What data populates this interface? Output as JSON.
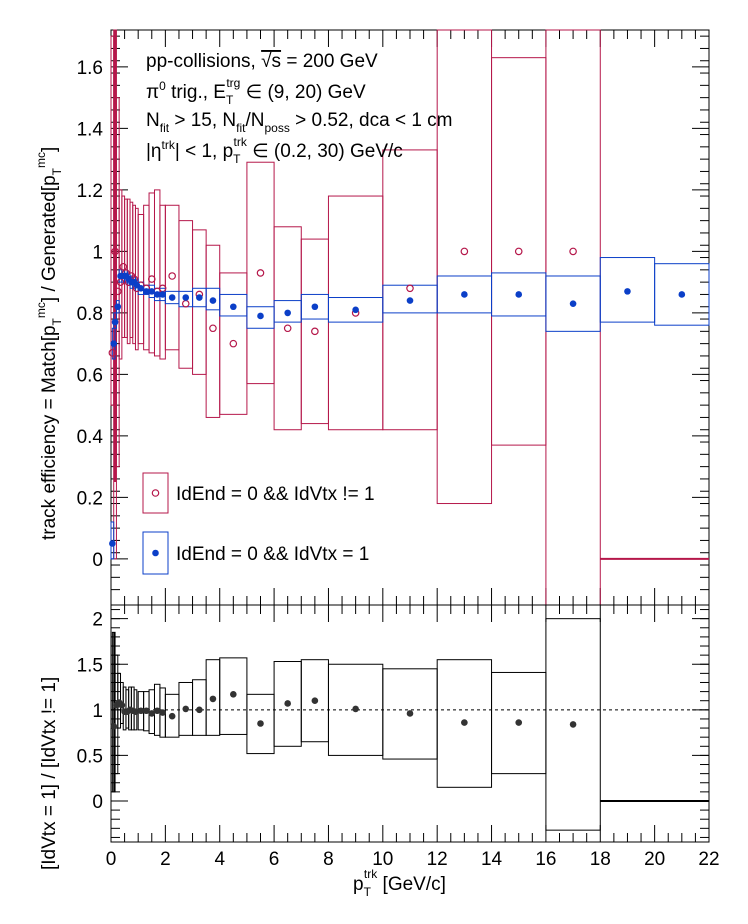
{
  "chart_data": [
    {
      "type": "scatter",
      "panel": "top",
      "ylabel_main": "track efficiency = Match[p",
      "ylabel_sub1": "T",
      "ylabel_sup1": "mc",
      "ylabel_mid": "] / Generated[p",
      "ylabel_sub2": "T",
      "ylabel_sup2": "mc",
      "ylabel_end": "]",
      "xlim": [
        0,
        22
      ],
      "ylim": [
        -0.15,
        1.72
      ],
      "yticks": [
        0,
        0.2,
        0.4,
        0.6,
        0.8,
        1,
        1.2,
        1.4,
        1.6
      ],
      "ytick_labels": [
        "0",
        "0.2",
        "0.4",
        "0.6",
        "0.8",
        "1",
        "1.2",
        "1.4",
        "1.6"
      ],
      "annotations": {
        "line1_a": "pp-collisions, ",
        "line1_sqrt": "√s",
        "line1_b": " = 200 GeV",
        "line2_a": "π",
        "line2_sup0": "0",
        "line2_b": " trig., E",
        "line2_sub": "T",
        "line2_sup": "trg",
        "line2_c": " ∈ (9, 20) GeV",
        "line3_a": "N",
        "line3_sub1": "fit",
        "line3_b": " > 15, N",
        "line3_sub2": "fit",
        "line3_c": "/N",
        "line3_sub3": "poss",
        "line3_d": " > 0.52, dca < 1 cm",
        "line4_a": "|η",
        "line4_sup1": "trk",
        "line4_b": "| < 1, p",
        "line4_sub": "T",
        "line4_sup2": "trk",
        "line4_c": " ∈ (0.2, 30) GeV/c"
      },
      "legend": [
        {
          "label": "IdEnd = 0 && IdVtx != 1",
          "color": "#b5174a",
          "marker": "open-circle"
        },
        {
          "label": "IdEnd = 0 && IdVtx = 1",
          "color": "#0b3fc8",
          "marker": "filled-circle"
        }
      ],
      "series": [
        {
          "name": "IdEnd = 0 && IdVtx != 1",
          "color": "#b5174a",
          "marker": "open",
          "points": [
            {
              "x": 0.05,
              "y": 0.67,
              "xlo": 0.0,
              "xhi": 0.1,
              "elo": 0.5,
              "ehi": 1.7
            },
            {
              "x": 0.15,
              "y": 1.0,
              "xlo": 0.1,
              "xhi": 0.2,
              "elo": 0.0,
              "ehi": 1.72
            },
            {
              "x": 0.25,
              "y": 0.87,
              "xlo": 0.2,
              "xhi": 0.3,
              "elo": 0.3,
              "ehi": 1.5
            },
            {
              "x": 0.35,
              "y": 0.9,
              "xlo": 0.3,
              "xhi": 0.4,
              "elo": 0.65,
              "ehi": 1.2
            },
            {
              "x": 0.45,
              "y": 0.95,
              "xlo": 0.4,
              "xhi": 0.5,
              "elo": 0.72,
              "ehi": 1.18
            },
            {
              "x": 0.55,
              "y": 0.93,
              "xlo": 0.5,
              "xhi": 0.6,
              "elo": 0.72,
              "ehi": 1.17
            },
            {
              "x": 0.65,
              "y": 0.9,
              "xlo": 0.6,
              "xhi": 0.7,
              "elo": 0.7,
              "ehi": 1.17
            },
            {
              "x": 0.75,
              "y": 0.92,
              "xlo": 0.7,
              "xhi": 0.8,
              "elo": 0.72,
              "ehi": 1.16
            },
            {
              "x": 0.85,
              "y": 0.91,
              "xlo": 0.8,
              "xhi": 0.9,
              "elo": 0.7,
              "ehi": 1.15
            },
            {
              "x": 0.95,
              "y": 0.88,
              "xlo": 0.9,
              "xhi": 1.0,
              "elo": 0.68,
              "ehi": 1.14
            },
            {
              "x": 1.1,
              "y": 0.89,
              "xlo": 1.0,
              "xhi": 1.2,
              "elo": 0.7,
              "ehi": 1.12
            },
            {
              "x": 1.3,
              "y": 0.88,
              "xlo": 1.2,
              "xhi": 1.4,
              "elo": 0.68,
              "ehi": 1.15
            },
            {
              "x": 1.5,
              "y": 0.91,
              "xlo": 1.4,
              "xhi": 1.6,
              "elo": 0.67,
              "ehi": 1.19
            },
            {
              "x": 1.7,
              "y": 0.87,
              "xlo": 1.6,
              "xhi": 1.8,
              "elo": 0.66,
              "ehi": 1.2
            },
            {
              "x": 1.9,
              "y": 0.88,
              "xlo": 1.8,
              "xhi": 2.0,
              "elo": 0.65,
              "ehi": 1.15
            },
            {
              "x": 2.25,
              "y": 0.92,
              "xlo": 2.0,
              "xhi": 2.5,
              "elo": 0.68,
              "ehi": 1.15
            },
            {
              "x": 2.75,
              "y": 0.83,
              "xlo": 2.5,
              "xhi": 3.0,
              "elo": 0.62,
              "ehi": 1.1
            },
            {
              "x": 3.25,
              "y": 0.86,
              "xlo": 3.0,
              "xhi": 3.5,
              "elo": 0.6,
              "ehi": 1.07
            },
            {
              "x": 3.75,
              "y": 0.75,
              "xlo": 3.5,
              "xhi": 4.0,
              "elo": 0.46,
              "ehi": 1.02
            },
            {
              "x": 4.5,
              "y": 0.7,
              "xlo": 4.0,
              "xhi": 5.0,
              "elo": 0.47,
              "ehi": 0.93
            },
            {
              "x": 5.5,
              "y": 0.93,
              "xlo": 5.0,
              "xhi": 6.0,
              "elo": 0.57,
              "ehi": 1.29
            },
            {
              "x": 6.5,
              "y": 0.75,
              "xlo": 6.0,
              "xhi": 7.0,
              "elo": 0.42,
              "ehi": 1.08
            },
            {
              "x": 7.5,
              "y": 0.74,
              "xlo": 7.0,
              "xhi": 8.0,
              "elo": 0.44,
              "ehi": 1.04
            },
            {
              "x": 9.0,
              "y": 0.8,
              "xlo": 8.0,
              "xhi": 10.0,
              "elo": 0.42,
              "ehi": 1.18
            },
            {
              "x": 11.0,
              "y": 0.88,
              "xlo": 10.0,
              "xhi": 12.0,
              "elo": 0.42,
              "ehi": 1.33
            },
            {
              "x": 13.0,
              "y": 1.0,
              "xlo": 12.0,
              "xhi": 14.0,
              "elo": 0.18,
              "ehi": 1.72
            },
            {
              "x": 15.0,
              "y": 1.0,
              "xlo": 14.0,
              "xhi": 16.0,
              "elo": 0.37,
              "ehi": 1.63
            },
            {
              "x": 17.0,
              "y": 1.0,
              "xlo": 16.0,
              "xhi": 18.0,
              "elo": -0.15,
              "ehi": 1.72
            },
            {
              "x": 20.0,
              "y": 0.0,
              "xlo": 18.0,
              "xhi": 22.0,
              "elo": 0.0,
              "ehi": 0.0,
              "hidden": true
            }
          ]
        },
        {
          "name": "IdEnd = 0 && IdVtx = 1",
          "color": "#0b3fc8",
          "marker": "filled",
          "points": [
            {
              "x": 0.05,
              "y": 0.05,
              "xlo": 0.0,
              "xhi": 0.1,
              "elo": 0.0,
              "ehi": 0.12
            },
            {
              "x": 0.1,
              "y": 0.7,
              "xlo": 0.05,
              "xhi": 0.15,
              "elo": 0.65,
              "ehi": 0.75
            },
            {
              "x": 0.15,
              "y": 0.77,
              "xlo": 0.1,
              "xhi": 0.2,
              "elo": 0.75,
              "ehi": 0.8
            },
            {
              "x": 0.25,
              "y": 0.82,
              "xlo": 0.2,
              "xhi": 0.3,
              "elo": 0.8,
              "ehi": 0.84
            },
            {
              "x": 0.35,
              "y": 0.92,
              "xlo": 0.3,
              "xhi": 0.4,
              "elo": 0.9,
              "ehi": 0.94
            },
            {
              "x": 0.45,
              "y": 0.92,
              "xlo": 0.4,
              "xhi": 0.5,
              "elo": 0.9,
              "ehi": 0.94
            },
            {
              "x": 0.55,
              "y": 0.92,
              "xlo": 0.5,
              "xhi": 0.6,
              "elo": 0.9,
              "ehi": 0.94
            },
            {
              "x": 0.65,
              "y": 0.91,
              "xlo": 0.6,
              "xhi": 0.7,
              "elo": 0.89,
              "ehi": 0.93
            },
            {
              "x": 0.75,
              "y": 0.9,
              "xlo": 0.7,
              "xhi": 0.8,
              "elo": 0.88,
              "ehi": 0.92
            },
            {
              "x": 0.85,
              "y": 0.9,
              "xlo": 0.8,
              "xhi": 0.9,
              "elo": 0.88,
              "ehi": 0.92
            },
            {
              "x": 0.95,
              "y": 0.89,
              "xlo": 0.9,
              "xhi": 1.0,
              "elo": 0.87,
              "ehi": 0.91
            },
            {
              "x": 1.1,
              "y": 0.88,
              "xlo": 1.0,
              "xhi": 1.2,
              "elo": 0.86,
              "ehi": 0.9
            },
            {
              "x": 1.3,
              "y": 0.87,
              "xlo": 1.2,
              "xhi": 1.4,
              "elo": 0.86,
              "ehi": 0.89
            },
            {
              "x": 1.5,
              "y": 0.87,
              "xlo": 1.4,
              "xhi": 1.6,
              "elo": 0.85,
              "ehi": 0.89
            },
            {
              "x": 1.7,
              "y": 0.86,
              "xlo": 1.6,
              "xhi": 1.8,
              "elo": 0.84,
              "ehi": 0.88
            },
            {
              "x": 1.9,
              "y": 0.86,
              "xlo": 1.8,
              "xhi": 2.0,
              "elo": 0.84,
              "ehi": 0.88
            },
            {
              "x": 2.25,
              "y": 0.85,
              "xlo": 2.0,
              "xhi": 2.5,
              "elo": 0.83,
              "ehi": 0.87
            },
            {
              "x": 2.75,
              "y": 0.85,
              "xlo": 2.5,
              "xhi": 3.0,
              "elo": 0.82,
              "ehi": 0.87
            },
            {
              "x": 3.25,
              "y": 0.85,
              "xlo": 3.0,
              "xhi": 3.5,
              "elo": 0.82,
              "ehi": 0.88
            },
            {
              "x": 3.75,
              "y": 0.84,
              "xlo": 3.5,
              "xhi": 4.0,
              "elo": 0.81,
              "ehi": 0.88
            },
            {
              "x": 4.5,
              "y": 0.82,
              "xlo": 4.0,
              "xhi": 5.0,
              "elo": 0.79,
              "ehi": 0.86
            },
            {
              "x": 5.5,
              "y": 0.79,
              "xlo": 5.0,
              "xhi": 6.0,
              "elo": 0.75,
              "ehi": 0.82
            },
            {
              "x": 6.5,
              "y": 0.8,
              "xlo": 6.0,
              "xhi": 7.0,
              "elo": 0.77,
              "ehi": 0.84
            },
            {
              "x": 7.5,
              "y": 0.82,
              "xlo": 7.0,
              "xhi": 8.0,
              "elo": 0.78,
              "ehi": 0.86
            },
            {
              "x": 9.0,
              "y": 0.81,
              "xlo": 8.0,
              "xhi": 10.0,
              "elo": 0.77,
              "ehi": 0.85
            },
            {
              "x": 11.0,
              "y": 0.84,
              "xlo": 10.0,
              "xhi": 12.0,
              "elo": 0.8,
              "ehi": 0.89
            },
            {
              "x": 13.0,
              "y": 0.86,
              "xlo": 12.0,
              "xhi": 14.0,
              "elo": 0.8,
              "ehi": 0.92
            },
            {
              "x": 15.0,
              "y": 0.86,
              "xlo": 14.0,
              "xhi": 16.0,
              "elo": 0.79,
              "ehi": 0.93
            },
            {
              "x": 17.0,
              "y": 0.83,
              "xlo": 16.0,
              "xhi": 18.0,
              "elo": 0.74,
              "ehi": 0.92
            },
            {
              "x": 19.0,
              "y": 0.87,
              "xlo": 18.0,
              "xhi": 20.0,
              "elo": 0.77,
              "ehi": 0.98
            },
            {
              "x": 21.0,
              "y": 0.86,
              "xlo": 20.0,
              "xhi": 22.0,
              "elo": 0.76,
              "ehi": 0.96
            }
          ]
        }
      ]
    },
    {
      "type": "scatter",
      "panel": "bottom",
      "ylabel": "[IdVtx = 1] / [IdVtx != 1]",
      "xlabel_main": "p",
      "xlabel_sub": "T",
      "xlabel_sup": "trk",
      "xlabel_end": " [GeV/c]",
      "xlim": [
        0,
        22
      ],
      "ylim": [
        -0.45,
        2.15
      ],
      "xticks": [
        0,
        2,
        4,
        6,
        8,
        10,
        12,
        14,
        16,
        18,
        20,
        22
      ],
      "xtick_labels": [
        "0",
        "2",
        "4",
        "6",
        "8",
        "10",
        "12",
        "14",
        "16",
        "18",
        "20",
        "22"
      ],
      "yticks": [
        0,
        0.5,
        1,
        1.5,
        2
      ],
      "ytick_labels": [
        "0",
        "0.5",
        "1",
        "1.5",
        "2"
      ],
      "reference_line": 1,
      "series": [
        {
          "name": "ratio",
          "color": "#333333",
          "points": [
            {
              "x": 0.1,
              "y": 0.82,
              "xlo": 0.05,
              "xhi": 0.15,
              "elo": 0.1,
              "ehi": 1.85
            },
            {
              "x": 0.2,
              "y": 1.05,
              "xlo": 0.15,
              "xhi": 0.25,
              "elo": 0.3,
              "ehi": 1.6
            },
            {
              "x": 0.3,
              "y": 1.08,
              "xlo": 0.25,
              "xhi": 0.35,
              "elo": 0.8,
              "ehi": 1.4
            },
            {
              "x": 0.4,
              "y": 1.05,
              "xlo": 0.35,
              "xhi": 0.45,
              "elo": 0.85,
              "ehi": 1.3
            },
            {
              "x": 0.5,
              "y": 0.98,
              "xlo": 0.45,
              "xhi": 0.55,
              "elo": 0.78,
              "ehi": 1.25
            },
            {
              "x": 0.6,
              "y": 0.98,
              "xlo": 0.55,
              "xhi": 0.65,
              "elo": 0.8,
              "ehi": 1.22
            },
            {
              "x": 0.7,
              "y": 1.0,
              "xlo": 0.65,
              "xhi": 0.75,
              "elo": 0.78,
              "ehi": 1.25
            },
            {
              "x": 0.8,
              "y": 0.99,
              "xlo": 0.75,
              "xhi": 0.85,
              "elo": 0.78,
              "ehi": 1.25
            },
            {
              "x": 0.9,
              "y": 0.98,
              "xlo": 0.85,
              "xhi": 0.95,
              "elo": 0.78,
              "ehi": 1.22
            },
            {
              "x": 1.1,
              "y": 0.99,
              "xlo": 1.0,
              "xhi": 1.2,
              "elo": 0.78,
              "ehi": 1.2
            },
            {
              "x": 1.3,
              "y": 0.99,
              "xlo": 1.2,
              "xhi": 1.4,
              "elo": 0.77,
              "ehi": 1.2
            },
            {
              "x": 1.5,
              "y": 0.96,
              "xlo": 1.4,
              "xhi": 1.6,
              "elo": 0.74,
              "ehi": 1.22
            },
            {
              "x": 1.7,
              "y": 0.99,
              "xlo": 1.6,
              "xhi": 1.8,
              "elo": 0.72,
              "ehi": 1.28
            },
            {
              "x": 1.9,
              "y": 0.97,
              "xlo": 1.8,
              "xhi": 2.0,
              "elo": 0.7,
              "ehi": 1.24
            },
            {
              "x": 2.25,
              "y": 0.93,
              "xlo": 2.0,
              "xhi": 2.5,
              "elo": 0.7,
              "ehi": 1.17
            },
            {
              "x": 2.75,
              "y": 1.01,
              "xlo": 2.5,
              "xhi": 3.0,
              "elo": 0.72,
              "ehi": 1.3
            },
            {
              "x": 3.25,
              "y": 1.0,
              "xlo": 3.0,
              "xhi": 3.5,
              "elo": 0.72,
              "ehi": 1.33
            },
            {
              "x": 3.75,
              "y": 1.12,
              "xlo": 3.5,
              "xhi": 4.0,
              "elo": 0.72,
              "ehi": 1.55
            },
            {
              "x": 4.5,
              "y": 1.17,
              "xlo": 4.0,
              "xhi": 5.0,
              "elo": 0.73,
              "ehi": 1.57
            },
            {
              "x": 5.5,
              "y": 0.85,
              "xlo": 5.0,
              "xhi": 6.0,
              "elo": 0.52,
              "ehi": 1.17
            },
            {
              "x": 6.5,
              "y": 1.07,
              "xlo": 6.0,
              "xhi": 7.0,
              "elo": 0.6,
              "ehi": 1.53
            },
            {
              "x": 7.5,
              "y": 1.1,
              "xlo": 7.0,
              "xhi": 8.0,
              "elo": 0.65,
              "ehi": 1.55
            },
            {
              "x": 9.0,
              "y": 1.01,
              "xlo": 8.0,
              "xhi": 10.0,
              "elo": 0.5,
              "ehi": 1.5
            },
            {
              "x": 11.0,
              "y": 0.96,
              "xlo": 10.0,
              "xhi": 12.0,
              "elo": 0.46,
              "ehi": 1.45
            },
            {
              "x": 13.0,
              "y": 0.86,
              "xlo": 12.0,
              "xhi": 14.0,
              "elo": 0.15,
              "ehi": 1.55
            },
            {
              "x": 15.0,
              "y": 0.86,
              "xlo": 14.0,
              "xhi": 16.0,
              "elo": 0.3,
              "ehi": 1.41
            },
            {
              "x": 17.0,
              "y": 0.84,
              "xlo": 16.0,
              "xhi": 18.0,
              "elo": -0.32,
              "ehi": 2.0
            },
            {
              "x": 20.0,
              "y": 0.0,
              "xlo": 18.0,
              "xhi": 22.0,
              "elo": 0.0,
              "ehi": 0.0,
              "hidden": true
            }
          ]
        }
      ]
    }
  ]
}
